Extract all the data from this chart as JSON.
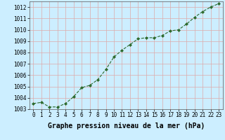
{
  "x": [
    0,
    1,
    2,
    3,
    4,
    5,
    6,
    7,
    8,
    9,
    10,
    11,
    12,
    13,
    14,
    15,
    16,
    17,
    18,
    19,
    20,
    21,
    22,
    23
  ],
  "y": [
    1003.5,
    1003.6,
    1003.2,
    1003.2,
    1003.5,
    1004.1,
    1004.9,
    1005.1,
    1005.6,
    1006.5,
    1007.6,
    1008.2,
    1008.7,
    1009.2,
    1009.3,
    1009.3,
    1009.5,
    1009.9,
    1010.0,
    1010.5,
    1011.1,
    1011.6,
    1012.0,
    1012.3
  ],
  "ylim": [
    1003.0,
    1012.5
  ],
  "yticks": [
    1003,
    1004,
    1005,
    1006,
    1007,
    1008,
    1009,
    1010,
    1011,
    1012
  ],
  "xlim": [
    -0.5,
    23.5
  ],
  "xticks": [
    0,
    1,
    2,
    3,
    4,
    5,
    6,
    7,
    8,
    9,
    10,
    11,
    12,
    13,
    14,
    15,
    16,
    17,
    18,
    19,
    20,
    21,
    22,
    23
  ],
  "line_color": "#2d6a2d",
  "marker": "D",
  "marker_size": 2.0,
  "bg_color": "#cceeff",
  "grid_color": "#ddaaaa",
  "xlabel": "Graphe pression niveau de la mer (hPa)",
  "xlabel_fontsize": 7.0,
  "tick_fontsize": 5.5,
  "ytick_fontsize": 5.5,
  "line_width": 0.8
}
